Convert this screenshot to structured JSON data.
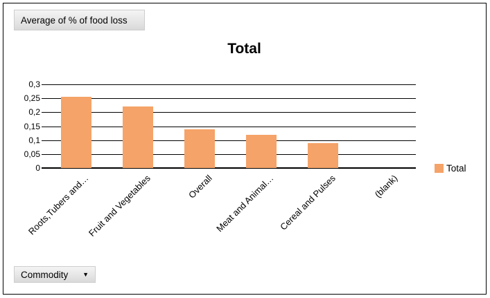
{
  "pivot_chart": {
    "value_field_button": "Average of % of food loss",
    "axis_field_button": "Commodity",
    "dropdown_arrow": "▼"
  },
  "chart_data": {
    "type": "bar",
    "title": "Total",
    "categories": [
      "Roots,Tubers and…",
      "Fruit and Vegetables",
      "Overall",
      "Meat and Animal…",
      "Cereal and Pulses",
      "(blank)"
    ],
    "series": [
      {
        "name": "Total",
        "values": [
          0.255,
          0.22,
          0.14,
          0.12,
          0.09,
          0
        ]
      }
    ],
    "ylim": [
      0,
      0.3
    ],
    "ytick_step": 0.05,
    "ytick_labels": [
      "0",
      "0,05",
      "0,1",
      "0,15",
      "0,2",
      "0,25",
      "0,3"
    ],
    "grid": true,
    "xlabel": "",
    "ylabel": "",
    "legend": {
      "position": "right",
      "entries": [
        {
          "label": "Total",
          "color": "#F5A368"
        }
      ]
    },
    "colors": {
      "bar": "#F5A368",
      "gridline": "#000000",
      "text": "#000000"
    }
  }
}
